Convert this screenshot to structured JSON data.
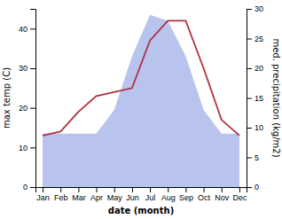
{
  "chart_data": {
    "type": "line",
    "categories": [
      "Jan",
      "Feb",
      "Mar",
      "Apr",
      "May",
      "Jun",
      "Jul",
      "Aug",
      "Sep",
      "Oct",
      "Nov",
      "Dec"
    ],
    "series": [
      {
        "type": "area",
        "axis": "y2",
        "color": "#b8c4ee",
        "values": [
          9,
          9,
          9,
          9,
          13,
          22,
          29,
          28,
          22,
          13,
          9,
          9
        ]
      },
      {
        "type": "line",
        "color": "#b03040",
        "values": [
          13,
          14,
          19,
          23,
          24,
          25,
          37,
          42,
          42,
          30,
          17,
          13
        ]
      }
    ],
    "xlabel": "date (month)",
    "ylabel": "max temp (C)",
    "y2label": "med. precipitation (kg/m2)",
    "ylim": [
      0,
      45
    ],
    "yticks": [
      0,
      10,
      20,
      30,
      40
    ],
    "y2lim": [
      0,
      30
    ],
    "y2ticks": [
      0,
      5,
      10,
      15,
      20,
      25,
      30
    ],
    "grid": false
  }
}
